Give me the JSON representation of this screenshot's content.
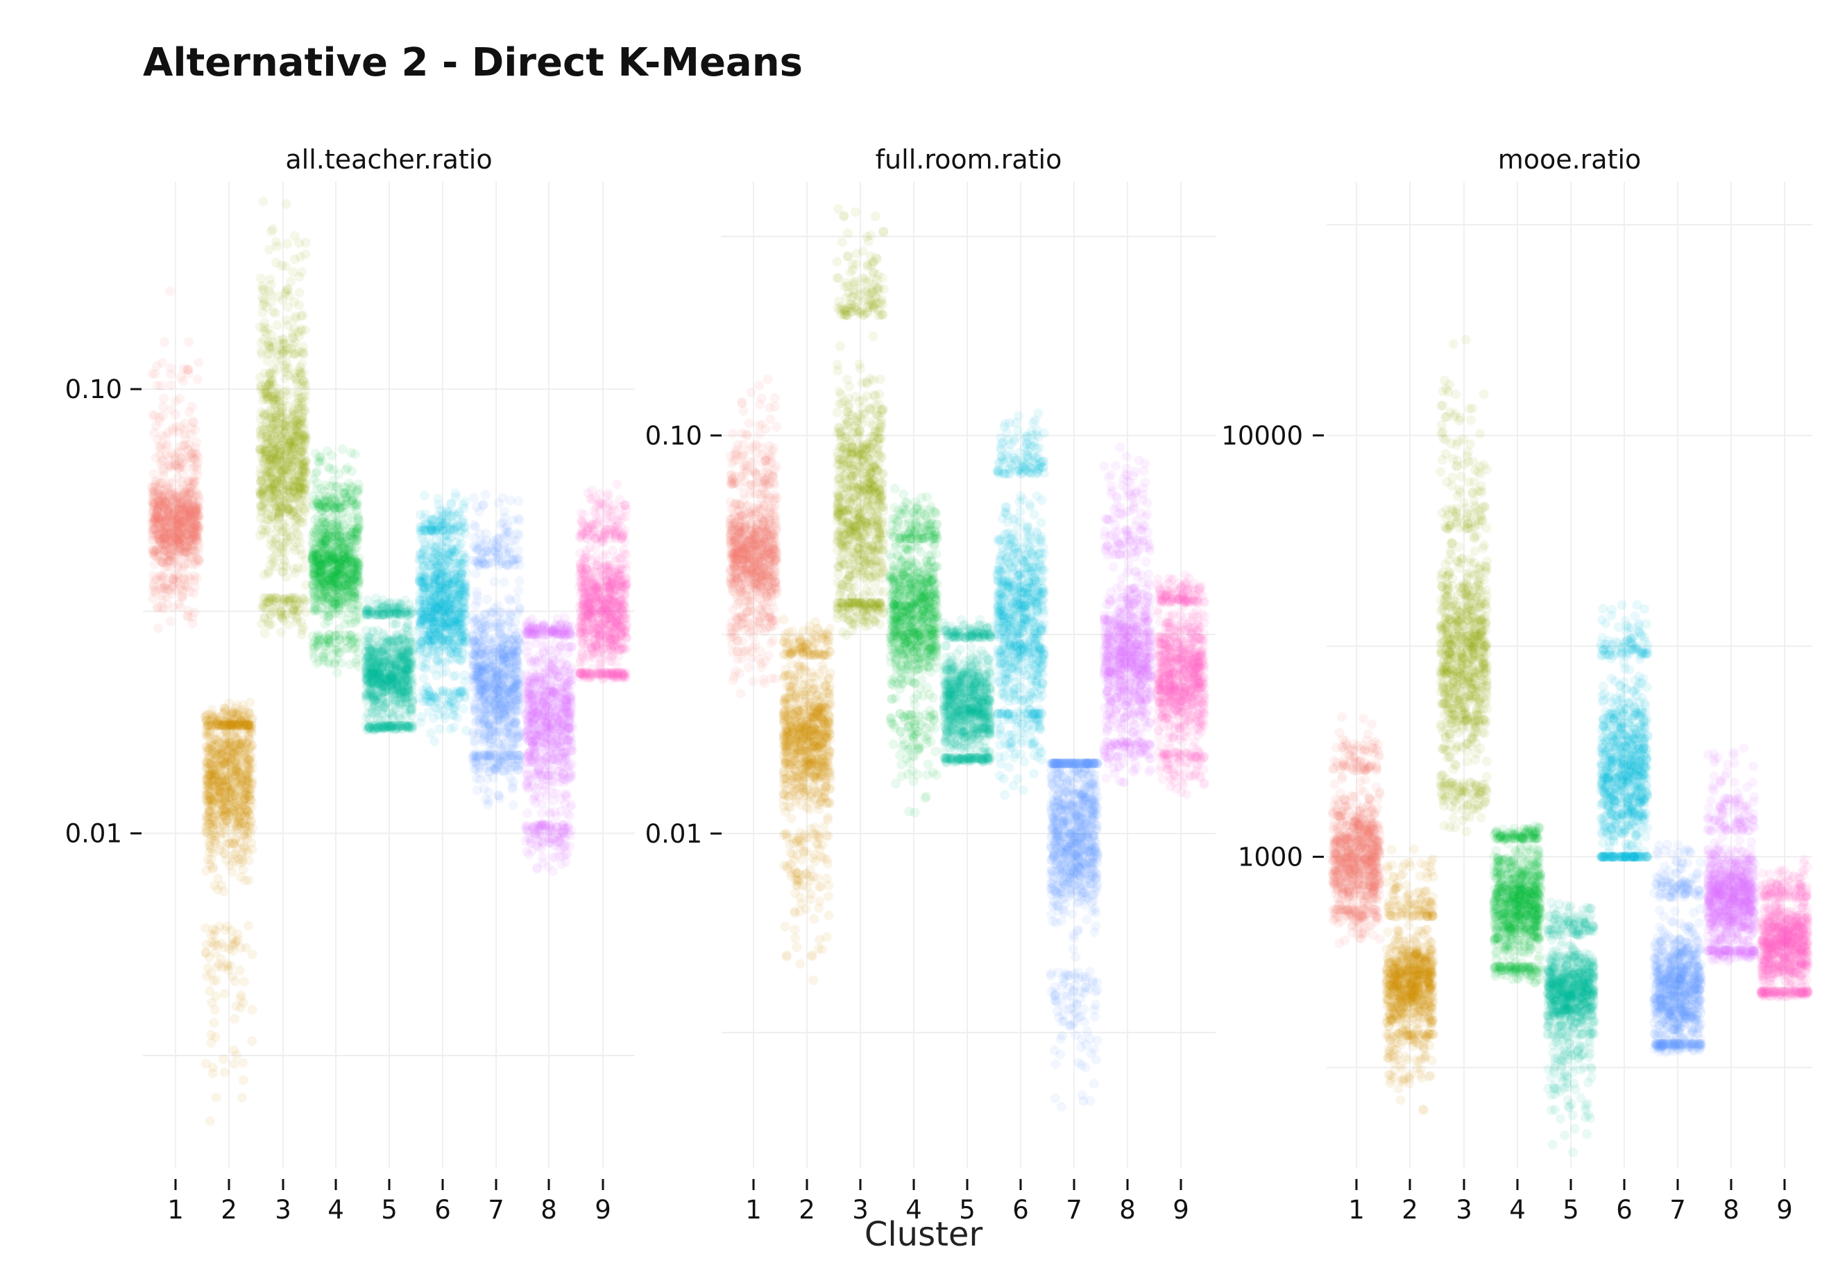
{
  "chart_data": {
    "type": "scatter",
    "title": "Alternative 2 - Direct K-Means",
    "xlabel": "Cluster",
    "x_categories": [
      "1",
      "2",
      "3",
      "4",
      "5",
      "6",
      "7",
      "8",
      "9"
    ],
    "y_scale": "log",
    "grid": true,
    "legend": "none",
    "colors": [
      "#F8766D",
      "#D39200",
      "#93AA00",
      "#00BA38",
      "#00C19F",
      "#00B9E3",
      "#619CFF",
      "#DB72FB",
      "#FF61C3"
    ],
    "panels": [
      {
        "name": "all.teacher.ratio",
        "y_ticks": [
          {
            "value": 0.1,
            "label": "0.10"
          },
          {
            "value": 0.01,
            "label": "0.01"
          }
        ],
        "ylim": [
          0.00176,
          0.293
        ],
        "clusters": [
          {
            "cluster": "1",
            "core_min": 0.038,
            "core_max": 0.066,
            "tail_min": 0.028,
            "tail_max": 0.17,
            "median": 0.05
          },
          {
            "cluster": "2",
            "core_min": 0.0062,
            "core_max": 0.0175,
            "tail_min": 0.0022,
            "tail_max": 0.02,
            "median": 0.013
          },
          {
            "cluster": "3",
            "core_min": 0.034,
            "core_max": 0.12,
            "tail_min": 0.027,
            "tail_max": 0.28,
            "median": 0.07
          },
          {
            "cluster": "4",
            "core_min": 0.028,
            "core_max": 0.054,
            "tail_min": 0.022,
            "tail_max": 0.075,
            "median": 0.04
          },
          {
            "cluster": "5",
            "core_min": 0.0175,
            "core_max": 0.031,
            "tail_min": 0.017,
            "tail_max": 0.034,
            "median": 0.023
          },
          {
            "cluster": "6",
            "core_min": 0.021,
            "core_max": 0.048,
            "tail_min": 0.016,
            "tail_max": 0.06,
            "median": 0.033
          },
          {
            "cluster": "7",
            "core_min": 0.015,
            "core_max": 0.04,
            "tail_min": 0.011,
            "tail_max": 0.06,
            "median": 0.022
          },
          {
            "cluster": "8",
            "core_min": 0.0105,
            "core_max": 0.028,
            "tail_min": 0.008,
            "tail_max": 0.031,
            "median": 0.018
          },
          {
            "cluster": "9",
            "core_min": 0.023,
            "core_max": 0.046,
            "tail_min": 0.022,
            "tail_max": 0.065,
            "median": 0.032
          }
        ]
      },
      {
        "name": "full.room.ratio",
        "y_ticks": [
          {
            "value": 0.1,
            "label": "0.10"
          },
          {
            "value": 0.01,
            "label": "0.01"
          }
        ],
        "ylim": [
          0.00144,
          0.434
        ],
        "clusters": [
          {
            "cluster": "1",
            "core_min": 0.035,
            "core_max": 0.075,
            "tail_min": 0.02,
            "tail_max": 0.15,
            "median": 0.05
          },
          {
            "cluster": "2",
            "core_min": 0.01,
            "core_max": 0.028,
            "tail_min": 0.004,
            "tail_max": 0.035,
            "median": 0.017
          },
          {
            "cluster": "3",
            "core_min": 0.038,
            "core_max": 0.2,
            "tail_min": 0.03,
            "tail_max": 0.39,
            "median": 0.07
          },
          {
            "cluster": "4",
            "core_min": 0.02,
            "core_max": 0.055,
            "tail_min": 0.01,
            "tail_max": 0.08,
            "median": 0.035
          },
          {
            "cluster": "5",
            "core_min": 0.0155,
            "core_max": 0.031,
            "tail_min": 0.015,
            "tail_max": 0.035,
            "median": 0.021
          },
          {
            "cluster": "6",
            "core_min": 0.02,
            "core_max": 0.08,
            "tail_min": 0.012,
            "tail_max": 0.12,
            "median": 0.035
          },
          {
            "cluster": "7",
            "core_min": 0.0045,
            "core_max": 0.015,
            "tail_min": 0.0016,
            "tail_max": 0.015,
            "median": 0.01
          },
          {
            "cluster": "8",
            "core_min": 0.017,
            "core_max": 0.05,
            "tail_min": 0.013,
            "tail_max": 0.1,
            "median": 0.028
          },
          {
            "cluster": "9",
            "core_min": 0.016,
            "core_max": 0.038,
            "tail_min": 0.012,
            "tail_max": 0.045,
            "median": 0.025
          }
        ]
      },
      {
        "name": "mooe.ratio",
        "y_ticks": [
          {
            "value": 10000,
            "label": "10000"
          },
          {
            "value": 1000,
            "label": "1000"
          }
        ],
        "ylim": [
          182,
          40000
        ],
        "clusters": [
          {
            "cluster": "1",
            "core_min": 750,
            "core_max": 1600,
            "tail_min": 600,
            "tail_max": 2200,
            "median": 1000
          },
          {
            "cluster": "2",
            "core_min": 380,
            "core_max": 720,
            "tail_min": 250,
            "tail_max": 1100,
            "median": 500
          },
          {
            "cluster": "3",
            "core_min": 1500,
            "core_max": 6000,
            "tail_min": 1100,
            "tail_max": 24000,
            "median": 3000
          },
          {
            "cluster": "4",
            "core_min": 550,
            "core_max": 1100,
            "tail_min": 500,
            "tail_max": 1200,
            "median": 780
          },
          {
            "cluster": "5",
            "core_min": 380,
            "core_max": 650,
            "tail_min": 190,
            "tail_max": 800,
            "median": 480
          },
          {
            "cluster": "6",
            "core_min": 1000,
            "core_max": 3000,
            "tail_min": 1000,
            "tail_max": 4200,
            "median": 1600
          },
          {
            "cluster": "7",
            "core_min": 360,
            "core_max": 800,
            "tail_min": 340,
            "tail_max": 1100,
            "median": 480
          },
          {
            "cluster": "8",
            "core_min": 600,
            "core_max": 1150,
            "tail_min": 560,
            "tail_max": 1900,
            "median": 800
          },
          {
            "cluster": "9",
            "core_min": 480,
            "core_max": 800,
            "tail_min": 460,
            "tail_max": 1000,
            "median": 620
          }
        ]
      }
    ]
  }
}
